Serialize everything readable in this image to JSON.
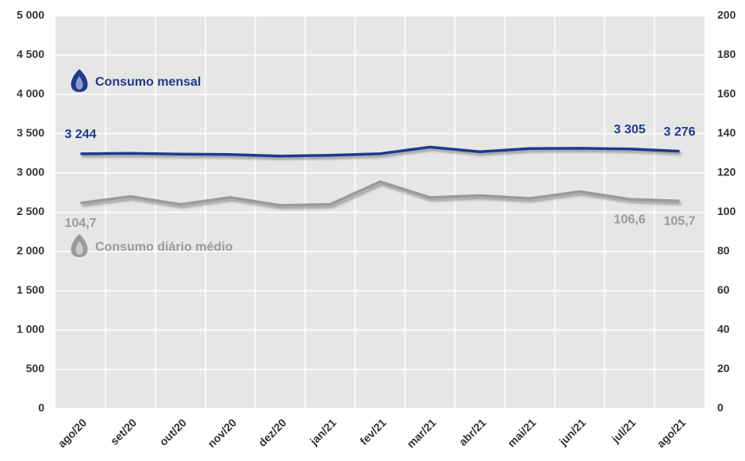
{
  "chart_data": {
    "type": "line",
    "categories": [
      "ago/20",
      "set/20",
      "out/20",
      "nov/20",
      "dez/20",
      "jan/21",
      "fev/21",
      "mar/21",
      "abr/21",
      "mai/21",
      "jun/21",
      "jul/21",
      "ago/21"
    ],
    "series": [
      {
        "name": "Consumo mensal",
        "color": "#1f3a8f",
        "axis": "y",
        "values": [
          3244,
          3250,
          3240,
          3235,
          3215,
          3225,
          3245,
          3330,
          3270,
          3310,
          3315,
          3305,
          3276
        ],
        "value_labels": [
          "3 244",
          null,
          null,
          null,
          null,
          null,
          null,
          null,
          null,
          null,
          null,
          "3 305",
          "3 276"
        ]
      },
      {
        "name": "Consumo diário médio",
        "color": "#9a9a9a",
        "axis": "y2",
        "values": [
          104.7,
          108,
          104,
          107.5,
          103.5,
          104,
          115.5,
          107.5,
          108.5,
          107,
          110.5,
          106.6,
          105.7
        ],
        "value_labels": [
          "104,7",
          null,
          null,
          null,
          null,
          null,
          null,
          null,
          null,
          null,
          null,
          "106,6",
          "105,7"
        ]
      }
    ],
    "ylim": [
      0,
      5000
    ],
    "yticks": [
      0,
      500,
      {
        "value": 1000,
        "label": "1 000"
      },
      {
        "value": 1500,
        "label": "1 500"
      },
      {
        "value": 2000,
        "label": "2 000"
      },
      {
        "value": 2500,
        "label": "2 500"
      },
      {
        "value": 3000,
        "label": "3 000"
      },
      {
        "value": 3500,
        "label": "3 500"
      },
      {
        "value": 4000,
        "label": "4 000"
      },
      {
        "value": 4500,
        "label": "4 500"
      },
      {
        "value": 5000,
        "label": "5 000"
      }
    ],
    "y2lim": [
      0,
      200
    ],
    "y2ticks": [
      0,
      20,
      40,
      60,
      80,
      100,
      120,
      140,
      160,
      180,
      200
    ],
    "grid": true
  }
}
